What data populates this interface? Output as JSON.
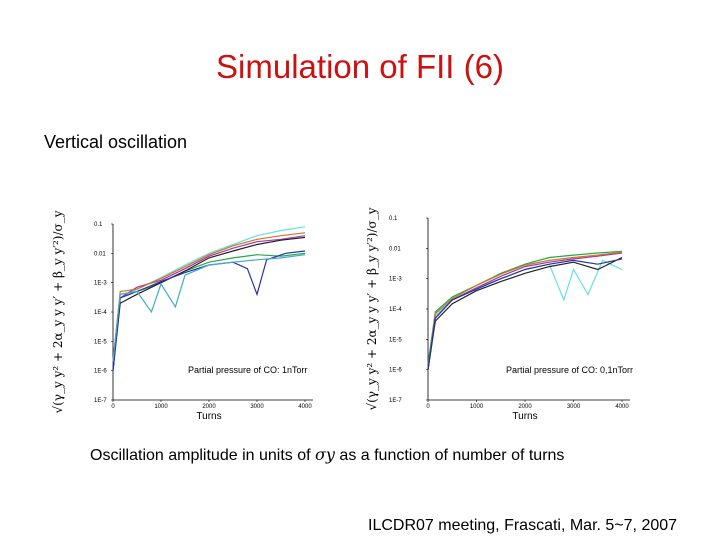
{
  "slide": {
    "title": "Simulation of FII (6)",
    "subtitle": "Vertical oscillation",
    "caption_pre": "Oscillation amplitude in units of ",
    "caption_sym": "σy",
    "caption_post": " as a function of number of turns",
    "footer": "ILCDR07 meeting, Frascati, Mar. 5~7, 2007"
  },
  "colors": {
    "title": "#cc1111"
  },
  "chart_data": [
    {
      "type": "line",
      "note": "Partial pressure of CO: 1nTorr",
      "xlabel": "Turns",
      "ylabel": "√(γ_y y² + 2α_y y y′ + β_y y′²)/σ_y",
      "x_ticks": [
        "0",
        "1000",
        "2000",
        "3000",
        "4000"
      ],
      "y_ticks": [
        "0.1",
        "0.01",
        "1E-3",
        "1E-4",
        "1E-5",
        "1E-6",
        "1E-7"
      ],
      "xlim": [
        0,
        4000
      ],
      "ylim": [
        1e-07,
        0.1
      ],
      "yscale": "log",
      "series": [
        {
          "color": "#66e0e0",
          "points": [
            [
              0,
              1e-06
            ],
            [
              150,
              0.0003
            ],
            [
              500,
              0.0006
            ],
            [
              1000,
              0.0015
            ],
            [
              1500,
              0.004
            ],
            [
              2000,
              0.01
            ],
            [
              2500,
              0.02
            ],
            [
              3000,
              0.04
            ],
            [
              3500,
              0.06
            ],
            [
              4000,
              0.08
            ]
          ]
        },
        {
          "color": "#22aa44",
          "points": [
            [
              0,
              2e-06
            ],
            [
              150,
              0.0004
            ],
            [
              500,
              0.0005
            ],
            [
              1000,
              0.001
            ],
            [
              1500,
              0.0025
            ],
            [
              2000,
              0.005
            ],
            [
              2500,
              0.007
            ],
            [
              3000,
              0.009
            ],
            [
              3500,
              0.008
            ],
            [
              4000,
              0.01
            ]
          ]
        },
        {
          "color": "#aa33aa",
          "points": [
            [
              0,
              1.5e-06
            ],
            [
              150,
              0.0003
            ],
            [
              500,
              0.0007
            ],
            [
              1000,
              0.0012
            ],
            [
              1500,
              0.003
            ],
            [
              2000,
              0.008
            ],
            [
              2500,
              0.015
            ],
            [
              3000,
              0.025
            ],
            [
              3500,
              0.03
            ],
            [
              4000,
              0.04
            ]
          ]
        },
        {
          "color": "#cc7722",
          "points": [
            [
              0,
              2e-06
            ],
            [
              150,
              0.0005
            ],
            [
              500,
              0.0006
            ],
            [
              1000,
              0.0014
            ],
            [
              1500,
              0.0035
            ],
            [
              2000,
              0.009
            ],
            [
              2500,
              0.018
            ],
            [
              3000,
              0.03
            ],
            [
              3500,
              0.04
            ],
            [
              4000,
              0.05
            ]
          ]
        },
        {
          "color": "#222222",
          "points": [
            [
              0,
              1e-06
            ],
            [
              150,
              0.0002
            ],
            [
              500,
              0.0004
            ],
            [
              1000,
              0.001
            ],
            [
              1500,
              0.0025
            ],
            [
              2000,
              0.007
            ],
            [
              2500,
              0.012
            ],
            [
              3000,
              0.02
            ],
            [
              3500,
              0.028
            ],
            [
              4000,
              0.035
            ]
          ]
        },
        {
          "color": "#2233aa",
          "points": [
            [
              0,
              1e-06
            ],
            [
              150,
              0.0003
            ],
            [
              500,
              0.0005
            ],
            [
              1000,
              0.0011
            ],
            [
              1500,
              0.0022
            ],
            [
              2000,
              0.004
            ],
            [
              2500,
              0.005
            ],
            [
              2800,
              0.003
            ],
            [
              3000,
              0.0004
            ],
            [
              3200,
              0.006
            ],
            [
              3600,
              0.01
            ],
            [
              4000,
              0.012
            ]
          ]
        },
        {
          "color": "#44aacc",
          "points": [
            [
              0,
              2e-06
            ],
            [
              150,
              0.0004
            ],
            [
              500,
              0.0005
            ],
            [
              800,
              0.0001
            ],
            [
              1000,
              0.0009
            ],
            [
              1300,
              0.00015
            ],
            [
              1500,
              0.0018
            ],
            [
              2000,
              0.004
            ],
            [
              2500,
              0.005
            ],
            [
              3000,
              0.006
            ],
            [
              3500,
              0.007
            ],
            [
              4000,
              0.009
            ]
          ]
        }
      ]
    },
    {
      "type": "line",
      "note": "Partial pressure of CO: 0,1nTorr",
      "xlabel": "Turns",
      "ylabel": "√(γ_y y² + 2α_y y y′ + β_y y′²)/σ_y",
      "x_ticks": [
        "0",
        "1000",
        "2000",
        "3000",
        "4000"
      ],
      "y_ticks": [
        "0.1",
        "0.01",
        "1E-3",
        "1E-4",
        "1E-5",
        "1E-6",
        "1E-7"
      ],
      "xlim": [
        0,
        4000
      ],
      "ylim": [
        1e-07,
        0.1
      ],
      "yscale": "log",
      "series": [
        {
          "color": "#66e0e0",
          "points": [
            [
              0,
              1e-06
            ],
            [
              150,
              6e-05
            ],
            [
              500,
              0.0002
            ],
            [
              1000,
              0.0005
            ],
            [
              1500,
              0.001
            ],
            [
              2000,
              0.002
            ],
            [
              2500,
              0.003
            ],
            [
              2800,
              0.0002
            ],
            [
              3000,
              0.002
            ],
            [
              3300,
              0.0003
            ],
            [
              3600,
              0.004
            ],
            [
              4000,
              0.002
            ]
          ]
        },
        {
          "color": "#22aa44",
          "points": [
            [
              0,
              1.5e-06
            ],
            [
              150,
              8e-05
            ],
            [
              500,
              0.00025
            ],
            [
              1000,
              0.0006
            ],
            [
              1500,
              0.0015
            ],
            [
              2000,
              0.003
            ],
            [
              2500,
              0.005
            ],
            [
              3000,
              0.006
            ],
            [
              3500,
              0.007
            ],
            [
              4000,
              0.008
            ]
          ]
        },
        {
          "color": "#aa33aa",
          "points": [
            [
              0,
              1e-06
            ],
            [
              150,
              5e-05
            ],
            [
              500,
              0.0002
            ],
            [
              1000,
              0.0005
            ],
            [
              1500,
              0.0012
            ],
            [
              2000,
              0.0025
            ],
            [
              2500,
              0.0035
            ],
            [
              3000,
              0.0045
            ],
            [
              3500,
              0.0055
            ],
            [
              4000,
              0.007
            ]
          ]
        },
        {
          "color": "#cc7722",
          "points": [
            [
              0,
              1e-06
            ],
            [
              150,
              7e-05
            ],
            [
              500,
              0.00022
            ],
            [
              1000,
              0.0006
            ],
            [
              1500,
              0.0014
            ],
            [
              2000,
              0.0028
            ],
            [
              2500,
              0.004
            ],
            [
              3000,
              0.005
            ],
            [
              3500,
              0.006
            ],
            [
              4000,
              0.0075
            ]
          ]
        },
        {
          "color": "#222222",
          "points": [
            [
              0,
              1e-06
            ],
            [
              150,
              4e-05
            ],
            [
              500,
              0.00015
            ],
            [
              1000,
              0.0004
            ],
            [
              1500,
              0.0008
            ],
            [
              2000,
              0.0015
            ],
            [
              2500,
              0.0025
            ],
            [
              3000,
              0.0035
            ],
            [
              3500,
              0.002
            ],
            [
              4000,
              0.005
            ]
          ]
        },
        {
          "color": "#2233aa",
          "points": [
            [
              0,
              1e-06
            ],
            [
              150,
              5e-05
            ],
            [
              500,
              0.0002
            ],
            [
              1000,
              0.00045
            ],
            [
              1500,
              0.001
            ],
            [
              2000,
              0.002
            ],
            [
              2500,
              0.003
            ],
            [
              3000,
              0.004
            ],
            [
              3500,
              0.003
            ],
            [
              4000,
              0.0045
            ]
          ]
        }
      ]
    }
  ]
}
